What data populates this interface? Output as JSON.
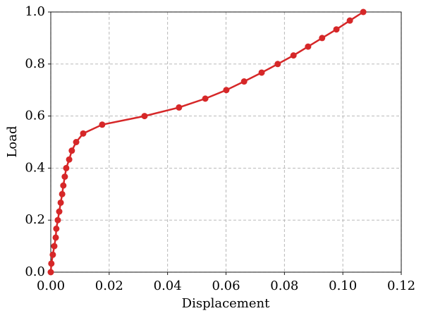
{
  "chart_data": {
    "type": "line",
    "x_label": "Displacement",
    "y_label": "Load",
    "x": [
      0,
      0.0002,
      0.0007,
      0.0012,
      0.0017,
      0.0019,
      0.0024,
      0.0029,
      0.0034,
      0.0039,
      0.0043,
      0.0048,
      0.0053,
      0.0063,
      0.0072,
      0.0087,
      0.0111,
      0.0176,
      0.0321,
      0.0439,
      0.0529,
      0.0601,
      0.0662,
      0.0722,
      0.0777,
      0.0831,
      0.0881,
      0.0929,
      0.0978,
      0.1024,
      0.107
    ],
    "series": [
      {
        "color": "#d62728",
        "values": [
          0,
          0.033,
          0.067,
          0.1,
          0.133,
          0.167,
          0.2,
          0.233,
          0.267,
          0.3,
          0.333,
          0.367,
          0.4,
          0.433,
          0.467,
          0.5,
          0.533,
          0.567,
          0.6,
          0.633,
          0.667,
          0.7,
          0.733,
          0.767,
          0.8,
          0.833,
          0.867,
          0.9,
          0.933,
          0.967,
          1.0
        ]
      }
    ],
    "xlim": [
      0,
      0.12
    ],
    "ylim": [
      0,
      1
    ],
    "xticks": [
      {
        "value": 0,
        "label": "0.00"
      },
      0.02,
      0.04,
      0.06,
      0.08,
      {
        "value": 0.1,
        "label": "0.10"
      },
      0.12
    ],
    "yticks": [
      {
        "value": 0,
        "label": "0.0"
      },
      0.2,
      0.4,
      0.6,
      0.8,
      {
        "value": 1,
        "label": "1.0"
      }
    ],
    "grid": true
  }
}
